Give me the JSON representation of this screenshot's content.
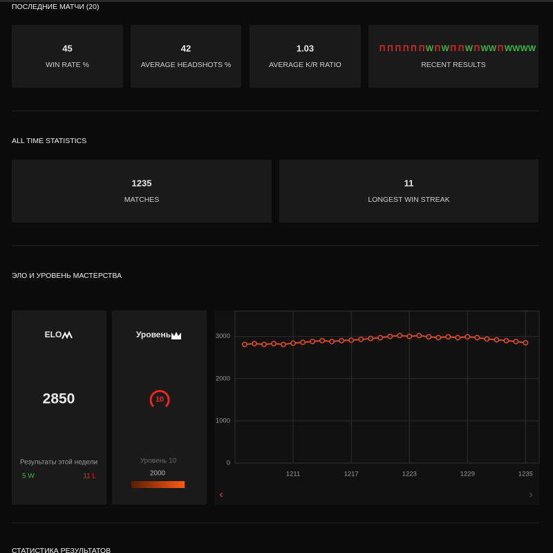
{
  "recent": {
    "title": "ПОСЛЕДНИЕ МАТЧИ (20)",
    "stats": [
      {
        "value": 45,
        "label": "WIN RATE %"
      },
      {
        "value": 42,
        "label": "AVERAGE HEADSHOTS %"
      },
      {
        "value": 1.03,
        "label": "AVERAGE K/R RATIO"
      }
    ],
    "results": [
      "П",
      "П",
      "П",
      "П",
      "П",
      "П",
      "W",
      "П",
      "W",
      "П",
      "П",
      "W",
      "П",
      "W",
      "W",
      "П",
      "W",
      "W",
      "W",
      "W"
    ],
    "result_colors": {
      "W": "#3cb043",
      "П": "#d8262c"
    },
    "results_label": "RECENT RESULTS"
  },
  "all_time": {
    "title": "ALL TIME STATISTICS",
    "stats": [
      {
        "value": 1235,
        "label": "MATCHES"
      },
      {
        "value": 11,
        "label": "LONGEST WIN STREAK"
      }
    ]
  },
  "elo": {
    "title": "ЭЛО И УРОВЕНЬ МАСТЕРСТВА",
    "elo_label": "ELO",
    "elo_value": 2850,
    "week_label": "Результаты этой недели",
    "wins": "5 W",
    "losses": "11 L",
    "level_label": "Уровень",
    "level": 10,
    "level_text": "Уровень 10",
    "level_points": 2000
  },
  "next_title": "СТАТИСТИКА РЕЗУЛЬТАТОВ",
  "chart_data": {
    "type": "line",
    "x": [
      1206,
      1207,
      1208,
      1209,
      1210,
      1211,
      1212,
      1213,
      1214,
      1215,
      1216,
      1217,
      1218,
      1219,
      1220,
      1221,
      1222,
      1223,
      1224,
      1225,
      1226,
      1227,
      1228,
      1229,
      1230,
      1231,
      1232,
      1233,
      1234,
      1235
    ],
    "values": [
      2810,
      2830,
      2810,
      2830,
      2810,
      2840,
      2860,
      2880,
      2900,
      2880,
      2900,
      2910,
      2930,
      2950,
      2970,
      3000,
      3020,
      3000,
      3020,
      2990,
      2970,
      2990,
      2970,
      2990,
      2970,
      2940,
      2920,
      2900,
      2880,
      2850
    ],
    "color": "#e04b28",
    "xlim": [
      1205,
      1236.4
    ],
    "ylim": [
      0,
      3600
    ],
    "xticks": [
      1211,
      1217,
      1223,
      1229,
      1235
    ],
    "yticks": [
      0,
      1000,
      2000,
      3000
    ],
    "grid": true
  }
}
